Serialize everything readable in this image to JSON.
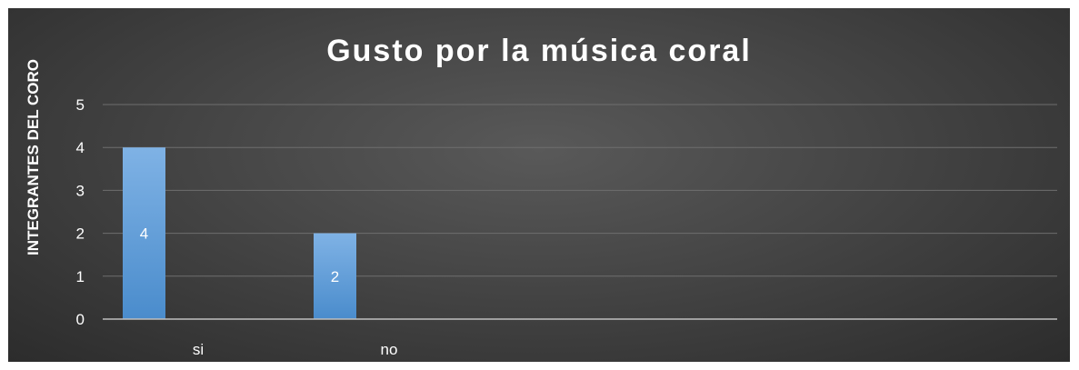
{
  "chart_data": {
    "type": "bar",
    "title": "Gusto por la música coral",
    "ylabel": "INTEGRANTES DEL CORO",
    "xlabel": "",
    "categories": [
      "si",
      "no"
    ],
    "values": [
      4,
      2
    ],
    "ylim": [
      0,
      5
    ],
    "yticks": [
      0,
      1,
      2,
      3,
      4,
      5
    ],
    "grid": true,
    "data_labels": true,
    "bar_color": "#5b9bd5",
    "bar_color_light": "#7fb2e5",
    "background_color": "#404040"
  }
}
